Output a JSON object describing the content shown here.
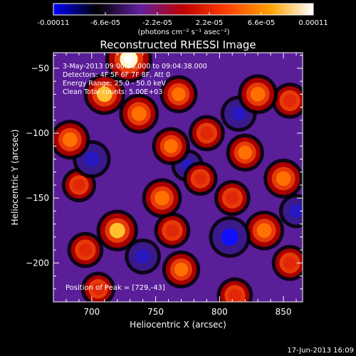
{
  "colorbar": {
    "tick_labels": [
      "-0.00011",
      "-6.6e-05",
      "-2.2e-05",
      "2.2e-05",
      "6.6e-05",
      "0.00011"
    ],
    "units": "(photons cm⁻² s⁻¹ asec⁻²)",
    "colors": [
      "#0000ff",
      "#000000",
      "#6020a0",
      "#c00000",
      "#ff4000",
      "#ffa000",
      "#ffffff"
    ]
  },
  "annotations": {
    "time_range": "3-May-2013 09:00:38.000 to 09:04:38.000",
    "detectors": "Detectors: 4F 5F 6F 7F 8F, Att 0",
    "energy_range": "Energy Range: 25.0 - 50.0 keV",
    "clean": "Clean    Total counts: 5.00E+03",
    "peak": "Position of Peak = [729,-43]"
  },
  "footer": {
    "timestamp": "17-Jun-2013 16:09"
  },
  "chart_data": {
    "type": "heatmap",
    "title": "Reconstructed RHESSI Image",
    "xlabel": "Heliocentric X (arcsec)",
    "ylabel": "Heliocentric Y (arcsec)",
    "xlim": [
      670,
      865
    ],
    "ylim": [
      -230,
      -38
    ],
    "x_ticks": [
      700,
      750,
      800,
      850
    ],
    "y_ticks": [
      -50,
      -100,
      -150,
      -200
    ],
    "x_tick_labels": [
      "700",
      "750",
      "800",
      "850"
    ],
    "y_tick_labels": [
      "−50",
      "−100",
      "−150",
      "−200"
    ],
    "color_range": [
      -0.00011,
      0.00011
    ],
    "peak": [
      729,
      -43
    ],
    "sources": [
      {
        "x": 729,
        "y": -43,
        "value": 0.00011
      },
      {
        "x": 710,
        "y": -70,
        "value": 8e-05
      },
      {
        "x": 683,
        "y": -105,
        "value": 7e-05
      },
      {
        "x": 737,
        "y": -85,
        "value": 7e-05
      },
      {
        "x": 768,
        "y": -70,
        "value": 6e-05
      },
      {
        "x": 830,
        "y": -70,
        "value": 7e-05
      },
      {
        "x": 855,
        "y": -75,
        "value": 5e-05
      },
      {
        "x": 790,
        "y": -100,
        "value": 5e-05
      },
      {
        "x": 762,
        "y": -110,
        "value": 6e-05
      },
      {
        "x": 820,
        "y": -115,
        "value": 6e-05
      },
      {
        "x": 785,
        "y": -135,
        "value": 4e-05
      },
      {
        "x": 690,
        "y": -140,
        "value": 4e-05
      },
      {
        "x": 755,
        "y": -150,
        "value": 7e-05
      },
      {
        "x": 810,
        "y": -150,
        "value": 5e-05
      },
      {
        "x": 850,
        "y": -135,
        "value": 7e-05
      },
      {
        "x": 720,
        "y": -175,
        "value": 8e-05
      },
      {
        "x": 695,
        "y": -190,
        "value": 5e-05
      },
      {
        "x": 763,
        "y": -175,
        "value": 5e-05
      },
      {
        "x": 835,
        "y": -175,
        "value": 7e-05
      },
      {
        "x": 770,
        "y": -205,
        "value": 6e-05
      },
      {
        "x": 855,
        "y": -200,
        "value": 5e-05
      },
      {
        "x": 705,
        "y": -220,
        "value": 4e-05
      },
      {
        "x": 812,
        "y": -225,
        "value": 5e-05
      },
      {
        "x": 700,
        "y": -120,
        "value": -6e-05
      },
      {
        "x": 815,
        "y": -85,
        "value": -5e-05
      },
      {
        "x": 808,
        "y": -180,
        "value": -8e-05
      },
      {
        "x": 740,
        "y": -195,
        "value": -5e-05
      },
      {
        "x": 775,
        "y": -125,
        "value": -3e-05
      },
      {
        "x": 860,
        "y": -160,
        "value": -4e-05
      }
    ]
  }
}
